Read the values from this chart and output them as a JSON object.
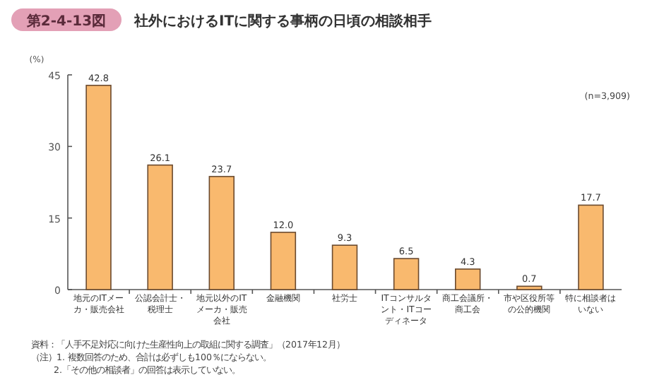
{
  "chart_data": {
    "type": "bar",
    "title": "社外におけるITに関する事柄の日頃の相談相手",
    "subtitle": "第2-4-13図",
    "ylabel": "(%)",
    "categories": [
      "地元のITメーカ・販売会社",
      "公認会計士・税理士",
      "地元以外のITメーカ・販売会社",
      "金融機関",
      "社労士",
      "ITコンサルタント・ITコーディネータ",
      "商工会議所・商工会",
      "市や区役所等の公的機関",
      "特に相談者はいない"
    ],
    "values": [
      42.8,
      26.1,
      23.7,
      12.0,
      9.3,
      6.5,
      4.3,
      0.7,
      17.7
    ],
    "value_labels": [
      "42.8",
      "26.1",
      "23.7",
      "12.0",
      "9.3",
      "6.5",
      "4.3",
      "0.7",
      "17.7"
    ],
    "color": "#f9b96e",
    "ylim": [
      0,
      45
    ],
    "yticks": [
      0,
      15,
      30,
      45
    ],
    "grid": false,
    "annotations": [
      "(n=3,909)",
      "資料：「人手不足対応に向けた生産性向上の取組に関する調査」（2017年12月）",
      "（注）1. 複数回答のため、合計は必ずしも100％にならない。",
      "2.「その他の相談者」の回答は表示していない。"
    ]
  }
}
